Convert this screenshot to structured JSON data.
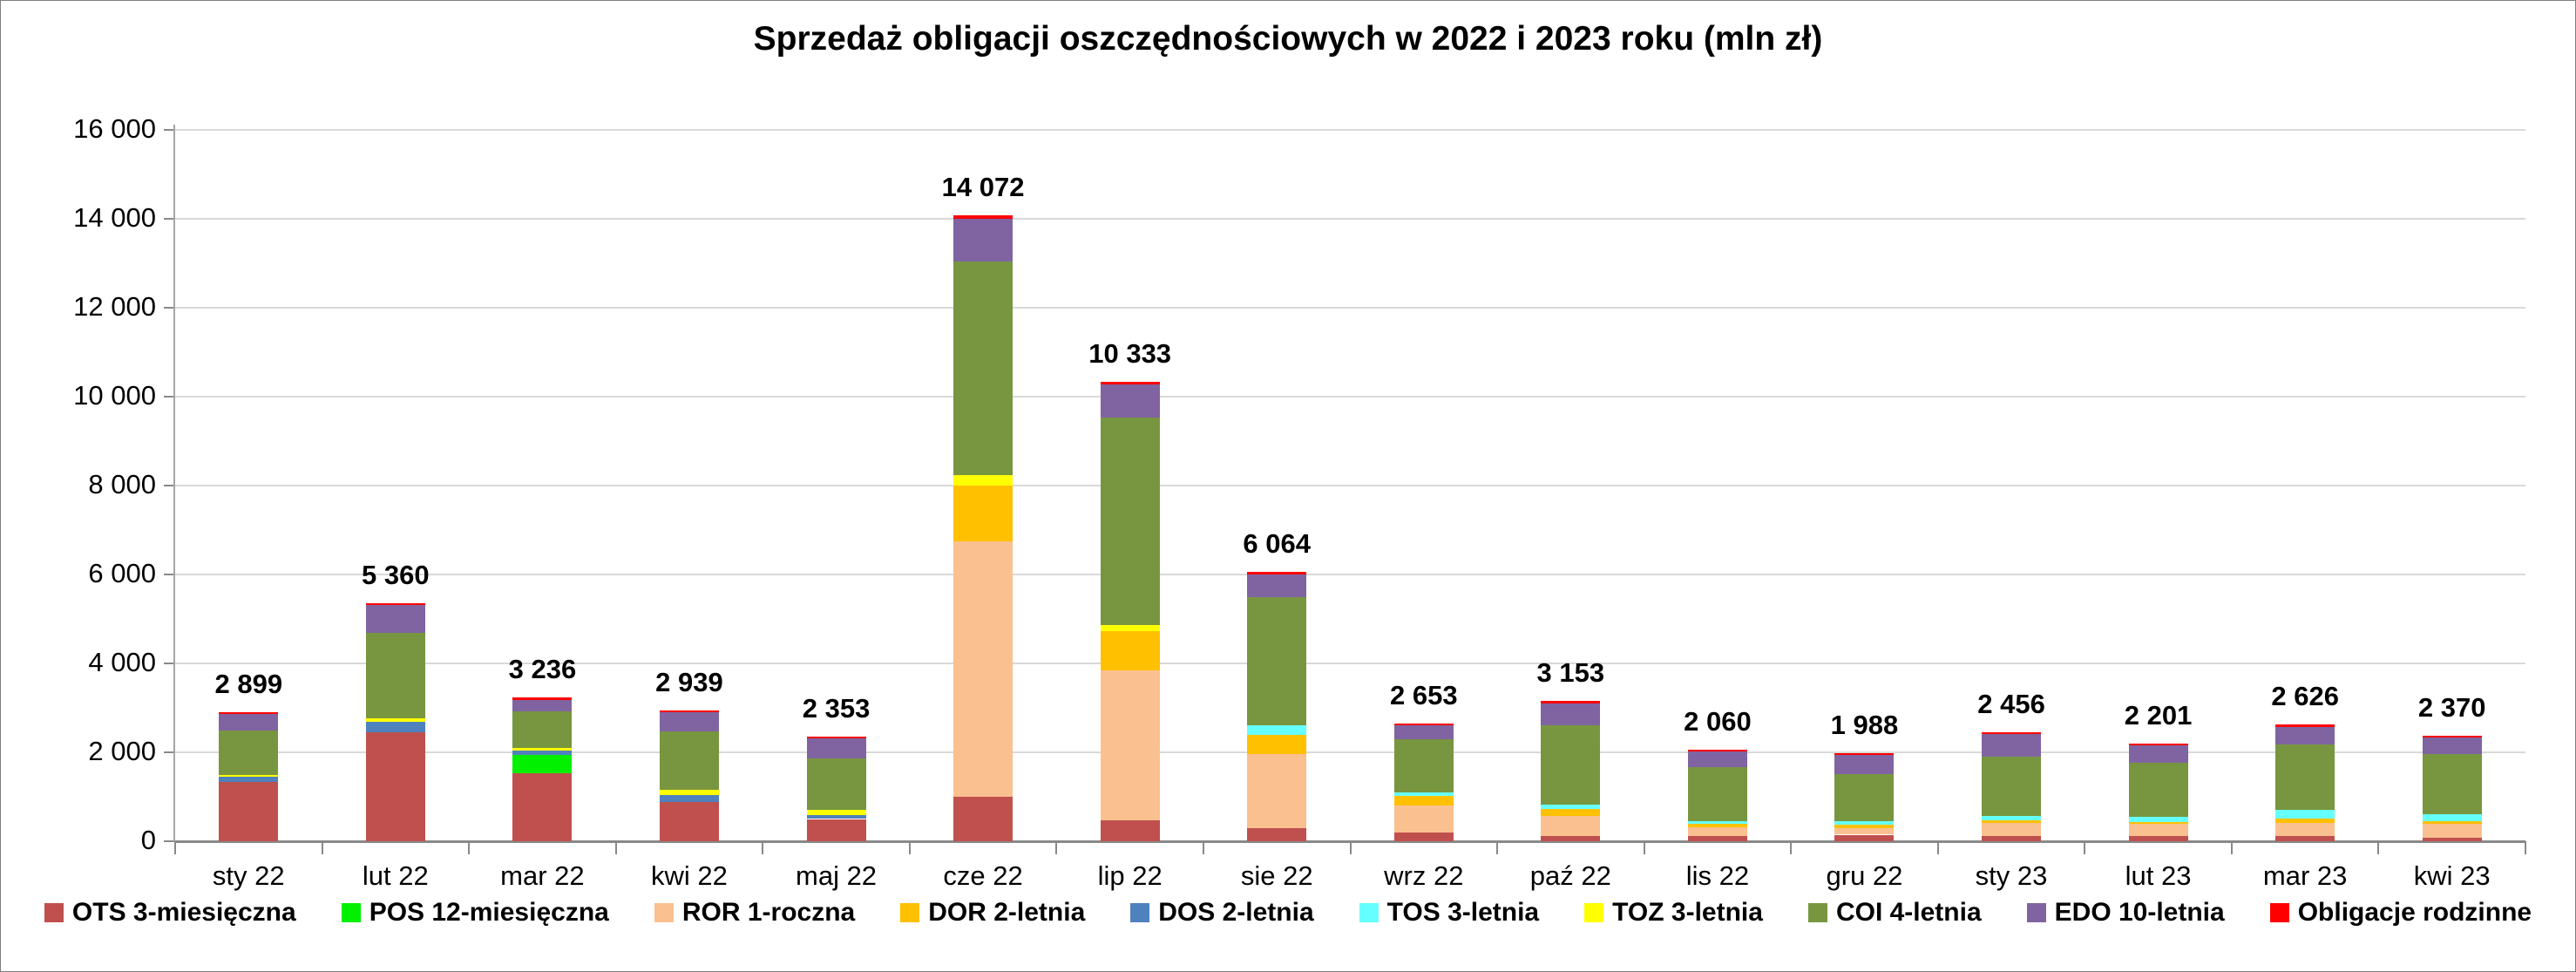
{
  "title": "Sprzedaż obligacji oszczędnościowych w 2022 i 2023 roku (mln zł)",
  "colors": {
    "background": "#ffffff",
    "gridline": "#d9d9d9",
    "axis": "#898989",
    "text": "#000000"
  },
  "chart_data": {
    "type": "bar",
    "stacked": true,
    "title": "Sprzedaż obligacji oszczędnościowych w 2022 i 2023 roku (mln zł)",
    "unit": "mln zł",
    "grid": true,
    "legend_position": "bottom",
    "ylim": [
      0,
      16000
    ],
    "y_ticks": [
      0,
      2000,
      4000,
      6000,
      8000,
      10000,
      12000,
      14000,
      16000
    ],
    "y_tick_labels": [
      "0",
      "2 000",
      "4 000",
      "6 000",
      "8 000",
      "10 000",
      "12 000",
      "14 000",
      "16 000"
    ],
    "categories": [
      "sty 22",
      "lut 22",
      "mar 22",
      "kwi 22",
      "maj 22",
      "cze 22",
      "lip 22",
      "sie 22",
      "wrz 22",
      "paź 22",
      "lis 22",
      "gru 22",
      "sty 23",
      "lut 23",
      "mar 23",
      "kwi 23"
    ],
    "totals": [
      2899,
      5360,
      3236,
      2939,
      2353,
      14072,
      10333,
      6064,
      2653,
      3153,
      2060,
      1988,
      2456,
      2201,
      2626,
      2370
    ],
    "total_labels": [
      "2 899",
      "5 360",
      "3 236",
      "2 939",
      "2 353",
      "14 072",
      "10 333",
      "6 064",
      "2 653",
      "3 153",
      "2 060",
      "1 988",
      "2 456",
      "2 201",
      "2 626",
      "2 370"
    ],
    "series": [
      {
        "name": "OTS 3-miesięczna",
        "color": "#C0504D",
        "values": [
          1330,
          2450,
          1520,
          890,
          500,
          1000,
          470,
          300,
          205,
          120,
          108,
          147,
          120,
          108,
          110,
          75
        ]
      },
      {
        "name": "POS 12-miesięczna",
        "color": "#00F000",
        "values": [
          0,
          0,
          415,
          0,
          0,
          0,
          0,
          0,
          0,
          0,
          0,
          0,
          0,
          0,
          0,
          0
        ]
      },
      {
        "name": "ROR 1-roczna",
        "color": "#FAC090",
        "values": [
          0,
          0,
          0,
          0,
          0,
          5745,
          3380,
          1660,
          600,
          445,
          210,
          153,
          295,
          283,
          310,
          320
        ]
      },
      {
        "name": "DOR 2-letnia",
        "color": "#FFC000",
        "values": [
          0,
          0,
          0,
          0,
          0,
          1255,
          875,
          435,
          205,
          168,
          76,
          76,
          58,
          50,
          84,
          50
        ]
      },
      {
        "name": "DOS 2-letnia",
        "color": "#4F81BD",
        "values": [
          118,
          230,
          95,
          140,
          95,
          0,
          0,
          0,
          0,
          0,
          0,
          0,
          0,
          0,
          0,
          0
        ]
      },
      {
        "name": "TOS 3-letnia",
        "color": "#66FFFF",
        "values": [
          0,
          0,
          0,
          0,
          0,
          0,
          0,
          215,
          85,
          84,
          58,
          70,
          97,
          103,
          195,
          160
        ]
      },
      {
        "name": "TOZ 3-letnia",
        "color": "#FFFF00",
        "values": [
          46,
          85,
          75,
          128,
          110,
          235,
          128,
          0,
          0,
          0,
          0,
          0,
          0,
          0,
          0,
          0
        ]
      },
      {
        "name": "COI 4-letnia",
        "color": "#77963F",
        "values": [
          995,
          1920,
          825,
          1320,
          1160,
          4800,
          4670,
          2880,
          1195,
          1790,
          1220,
          1066,
          1330,
          1215,
          1483,
          1348
        ]
      },
      {
        "name": "EDO 10-letnia",
        "color": "#8064A2",
        "values": [
          370,
          620,
          250,
          422,
          442,
          962,
          750,
          510,
          317,
          500,
          350,
          437,
          505,
          390,
          380,
          378
        ]
      },
      {
        "name": "Obligacje rodzinne",
        "color": "#FF0000",
        "values": [
          40,
          55,
          56,
          39,
          46,
          75,
          60,
          64,
          46,
          46,
          38,
          39,
          51,
          52,
          64,
          39
        ]
      }
    ]
  }
}
